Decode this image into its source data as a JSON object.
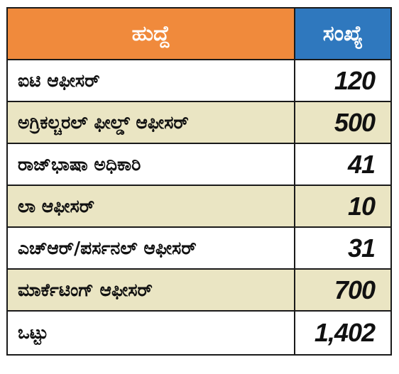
{
  "table": {
    "headers": {
      "post": "ಹುದ್ದೆ",
      "count": "ಸಂಖ್ಯೆ"
    },
    "rows": [
      {
        "post": "ಐಟಿ ಆಫೀಸರ್",
        "count": "120"
      },
      {
        "post": "ಅಗ್ರಿಕಲ್ಚರಲ್ ಫೀಲ್ಡ್ ಆಫೀಸರ್",
        "count": "500"
      },
      {
        "post": "ರಾಜ್‌ಭಾಷಾ ಅಧಿಕಾರಿ",
        "count": "41"
      },
      {
        "post": "ಲಾ ಆಫೀಸರ್",
        "count": "10"
      },
      {
        "post": "ಎಚ್‌ಆರ್/ಪರ್ಸನಲ್ ಆಫೀಸರ್",
        "count": "31"
      },
      {
        "post": "ಮಾರ್ಕೆಟಿಂಗ್ ಆಫೀಸರ್",
        "count": "700"
      }
    ],
    "total": {
      "post": "ಒಟ್ಟು",
      "count": "1,402"
    }
  },
  "colors": {
    "header_post_bg": "#f08a3c",
    "header_count_bg": "#2f78be",
    "row_alt_bg": "#eae5c3",
    "border": "#1a1a1a"
  }
}
